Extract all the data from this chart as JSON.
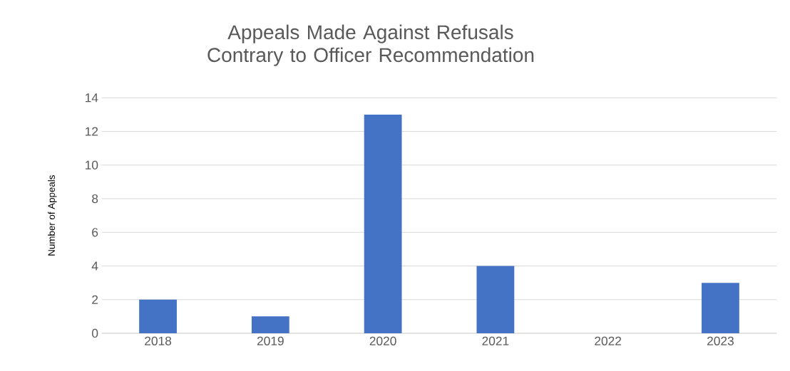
{
  "chart_data": {
    "type": "bar",
    "title": "Appeals Made Against Refusals Contrary to Officer Recommendation",
    "ylabel": "Number of Appeals",
    "categories": [
      "2018",
      "2019",
      "2020",
      "2021",
      "2022",
      "2023"
    ],
    "values": [
      2,
      1,
      13,
      4,
      0,
      3
    ],
    "color": "#4472c4",
    "ylim": [
      0,
      14
    ],
    "yticks": [
      0,
      2,
      4,
      6,
      8,
      10,
      12,
      14
    ],
    "grid": "y"
  }
}
